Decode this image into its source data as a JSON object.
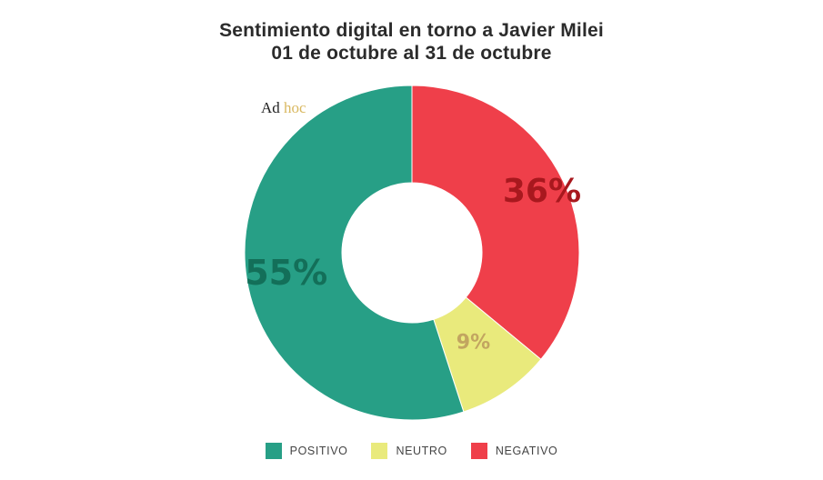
{
  "chart_data": {
    "type": "pie",
    "title": "Sentimiento digital en torno a Javier Milei",
    "subtitle": "01 de octubre al 31 de octubre",
    "logo_text": [
      "Ad",
      "hoc"
    ],
    "slices": [
      {
        "label": "NEGATIVO",
        "value": 36,
        "display": "36%",
        "color": "#ef3f4a",
        "label_color": "#a8181e"
      },
      {
        "label": "NEUTRO",
        "value": 9,
        "display": "9%",
        "color": "#e9ea7c",
        "label_color": "#c2a560"
      },
      {
        "label": "POSITIVO",
        "value": 55,
        "display": "55%",
        "color": "#279f86",
        "label_color": "#136f59"
      }
    ],
    "legend": [
      {
        "label": "POSITIVO",
        "color": "#279f86"
      },
      {
        "label": "NEUTRO",
        "color": "#e9ea7c"
      },
      {
        "label": "NEGATIVO",
        "color": "#ef3f4a"
      }
    ],
    "donut": true,
    "legend_position": "bottom-center"
  }
}
